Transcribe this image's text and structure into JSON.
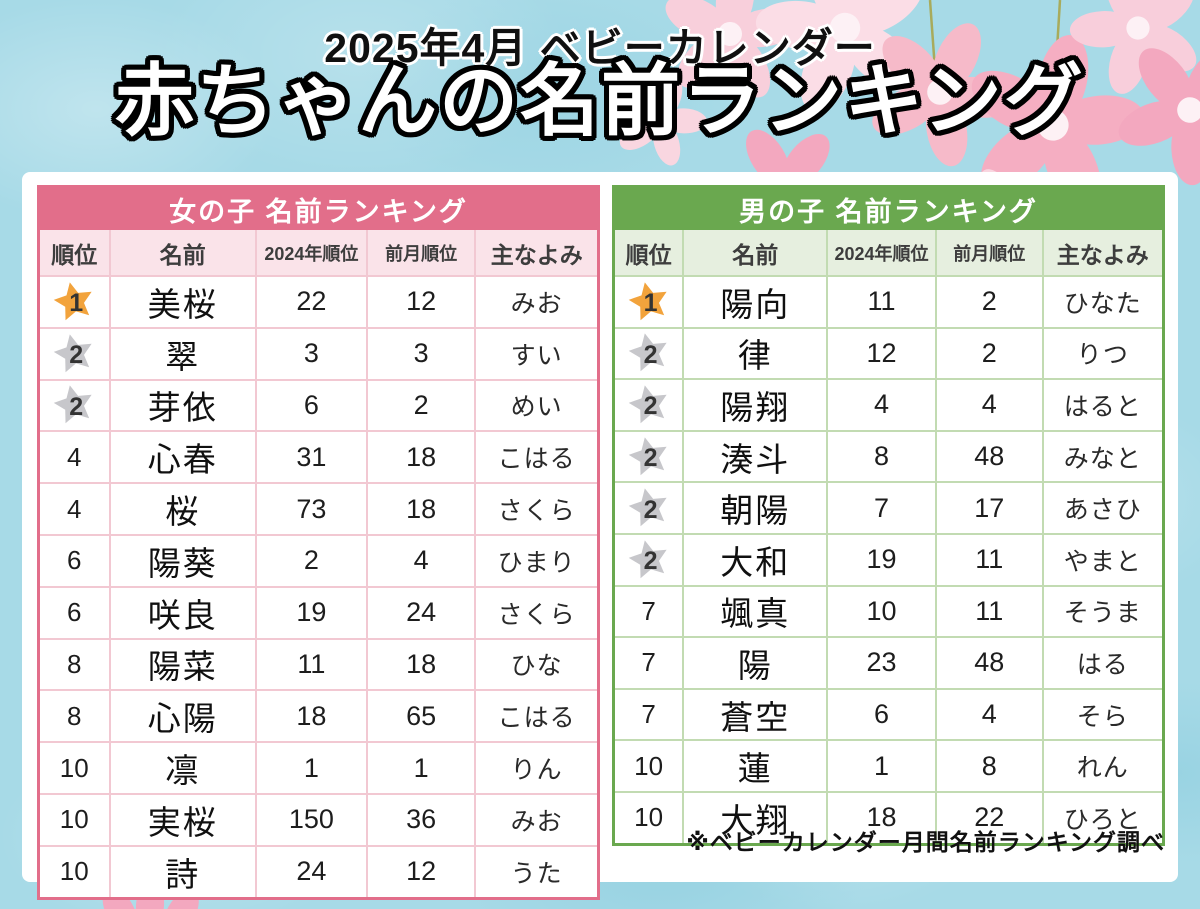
{
  "page": {
    "subtitle": "2025年4月 ベビーカレンダー",
    "title": "赤ちゃんの名前ランキング",
    "footnote": "※ベビーカレンダー月間名前ランキング調べ"
  },
  "icons": {
    "rank1": "gold-star-icon",
    "rank2": "silver-star-icon"
  },
  "colors": {
    "background_blue": "#a7dae7",
    "girls_accent": "#e26e8a",
    "girls_light": "#fae3e9",
    "girls_grid": "#f2c8d2",
    "boys_accent": "#6aa84f",
    "boys_light": "#e6efdf",
    "boys_grid": "#c2dbb2",
    "gold_star": "#f2a33c",
    "silver_star": "#c7c7cb"
  },
  "chart_data": [
    {
      "type": "table",
      "title": "女の子 名前ランキング",
      "accent_color": "#e26e8a",
      "light_color": "#fae3e9",
      "grid_color": "#f2c8d2",
      "columns": [
        "順位",
        "名前",
        "2024年順位",
        "前月順位",
        "主なよみ"
      ],
      "rows": [
        {
          "rank": "1",
          "star": "gold",
          "name": "美桜",
          "rank_2024": "22",
          "prev_month": "12",
          "yomi": "みお"
        },
        {
          "rank": "2",
          "star": "silver",
          "name": "翠",
          "rank_2024": "3",
          "prev_month": "3",
          "yomi": "すい"
        },
        {
          "rank": "2",
          "star": "silver",
          "name": "芽依",
          "rank_2024": "6",
          "prev_month": "2",
          "yomi": "めい"
        },
        {
          "rank": "4",
          "star": "",
          "name": "心春",
          "rank_2024": "31",
          "prev_month": "18",
          "yomi": "こはる"
        },
        {
          "rank": "4",
          "star": "",
          "name": "桜",
          "rank_2024": "73",
          "prev_month": "18",
          "yomi": "さくら"
        },
        {
          "rank": "6",
          "star": "",
          "name": "陽葵",
          "rank_2024": "2",
          "prev_month": "4",
          "yomi": "ひまり"
        },
        {
          "rank": "6",
          "star": "",
          "name": "咲良",
          "rank_2024": "19",
          "prev_month": "24",
          "yomi": "さくら"
        },
        {
          "rank": "8",
          "star": "",
          "name": "陽菜",
          "rank_2024": "11",
          "prev_month": "18",
          "yomi": "ひな"
        },
        {
          "rank": "8",
          "star": "",
          "name": "心陽",
          "rank_2024": "18",
          "prev_month": "65",
          "yomi": "こはる"
        },
        {
          "rank": "10",
          "star": "",
          "name": "凛",
          "rank_2024": "1",
          "prev_month": "1",
          "yomi": "りん"
        },
        {
          "rank": "10",
          "star": "",
          "name": "実桜",
          "rank_2024": "150",
          "prev_month": "36",
          "yomi": "みお"
        },
        {
          "rank": "10",
          "star": "",
          "name": "詩",
          "rank_2024": "24",
          "prev_month": "12",
          "yomi": "うた"
        }
      ]
    },
    {
      "type": "table",
      "title": "男の子 名前ランキング",
      "accent_color": "#6aa84f",
      "light_color": "#e6efdf",
      "grid_color": "#c2dbb2",
      "columns": [
        "順位",
        "名前",
        "2024年順位",
        "前月順位",
        "主なよみ"
      ],
      "rows": [
        {
          "rank": "1",
          "star": "gold",
          "name": "陽向",
          "rank_2024": "11",
          "prev_month": "2",
          "yomi": "ひなた"
        },
        {
          "rank": "2",
          "star": "silver",
          "name": "律",
          "rank_2024": "12",
          "prev_month": "2",
          "yomi": "りつ"
        },
        {
          "rank": "2",
          "star": "silver",
          "name": "陽翔",
          "rank_2024": "4",
          "prev_month": "4",
          "yomi": "はると"
        },
        {
          "rank": "2",
          "star": "silver",
          "name": "湊斗",
          "rank_2024": "8",
          "prev_month": "48",
          "yomi": "みなと"
        },
        {
          "rank": "2",
          "star": "silver",
          "name": "朝陽",
          "rank_2024": "7",
          "prev_month": "17",
          "yomi": "あさひ"
        },
        {
          "rank": "2",
          "star": "silver",
          "name": "大和",
          "rank_2024": "19",
          "prev_month": "11",
          "yomi": "やまと"
        },
        {
          "rank": "7",
          "star": "",
          "name": "颯真",
          "rank_2024": "10",
          "prev_month": "11",
          "yomi": "そうま"
        },
        {
          "rank": "7",
          "star": "",
          "name": "陽",
          "rank_2024": "23",
          "prev_month": "48",
          "yomi": "はる"
        },
        {
          "rank": "7",
          "star": "",
          "name": "蒼空",
          "rank_2024": "6",
          "prev_month": "4",
          "yomi": "そら"
        },
        {
          "rank": "10",
          "star": "",
          "name": "蓮",
          "rank_2024": "1",
          "prev_month": "8",
          "yomi": "れん"
        },
        {
          "rank": "10",
          "star": "",
          "name": "大翔",
          "rank_2024": "18",
          "prev_month": "22",
          "yomi": "ひろと"
        }
      ]
    }
  ]
}
